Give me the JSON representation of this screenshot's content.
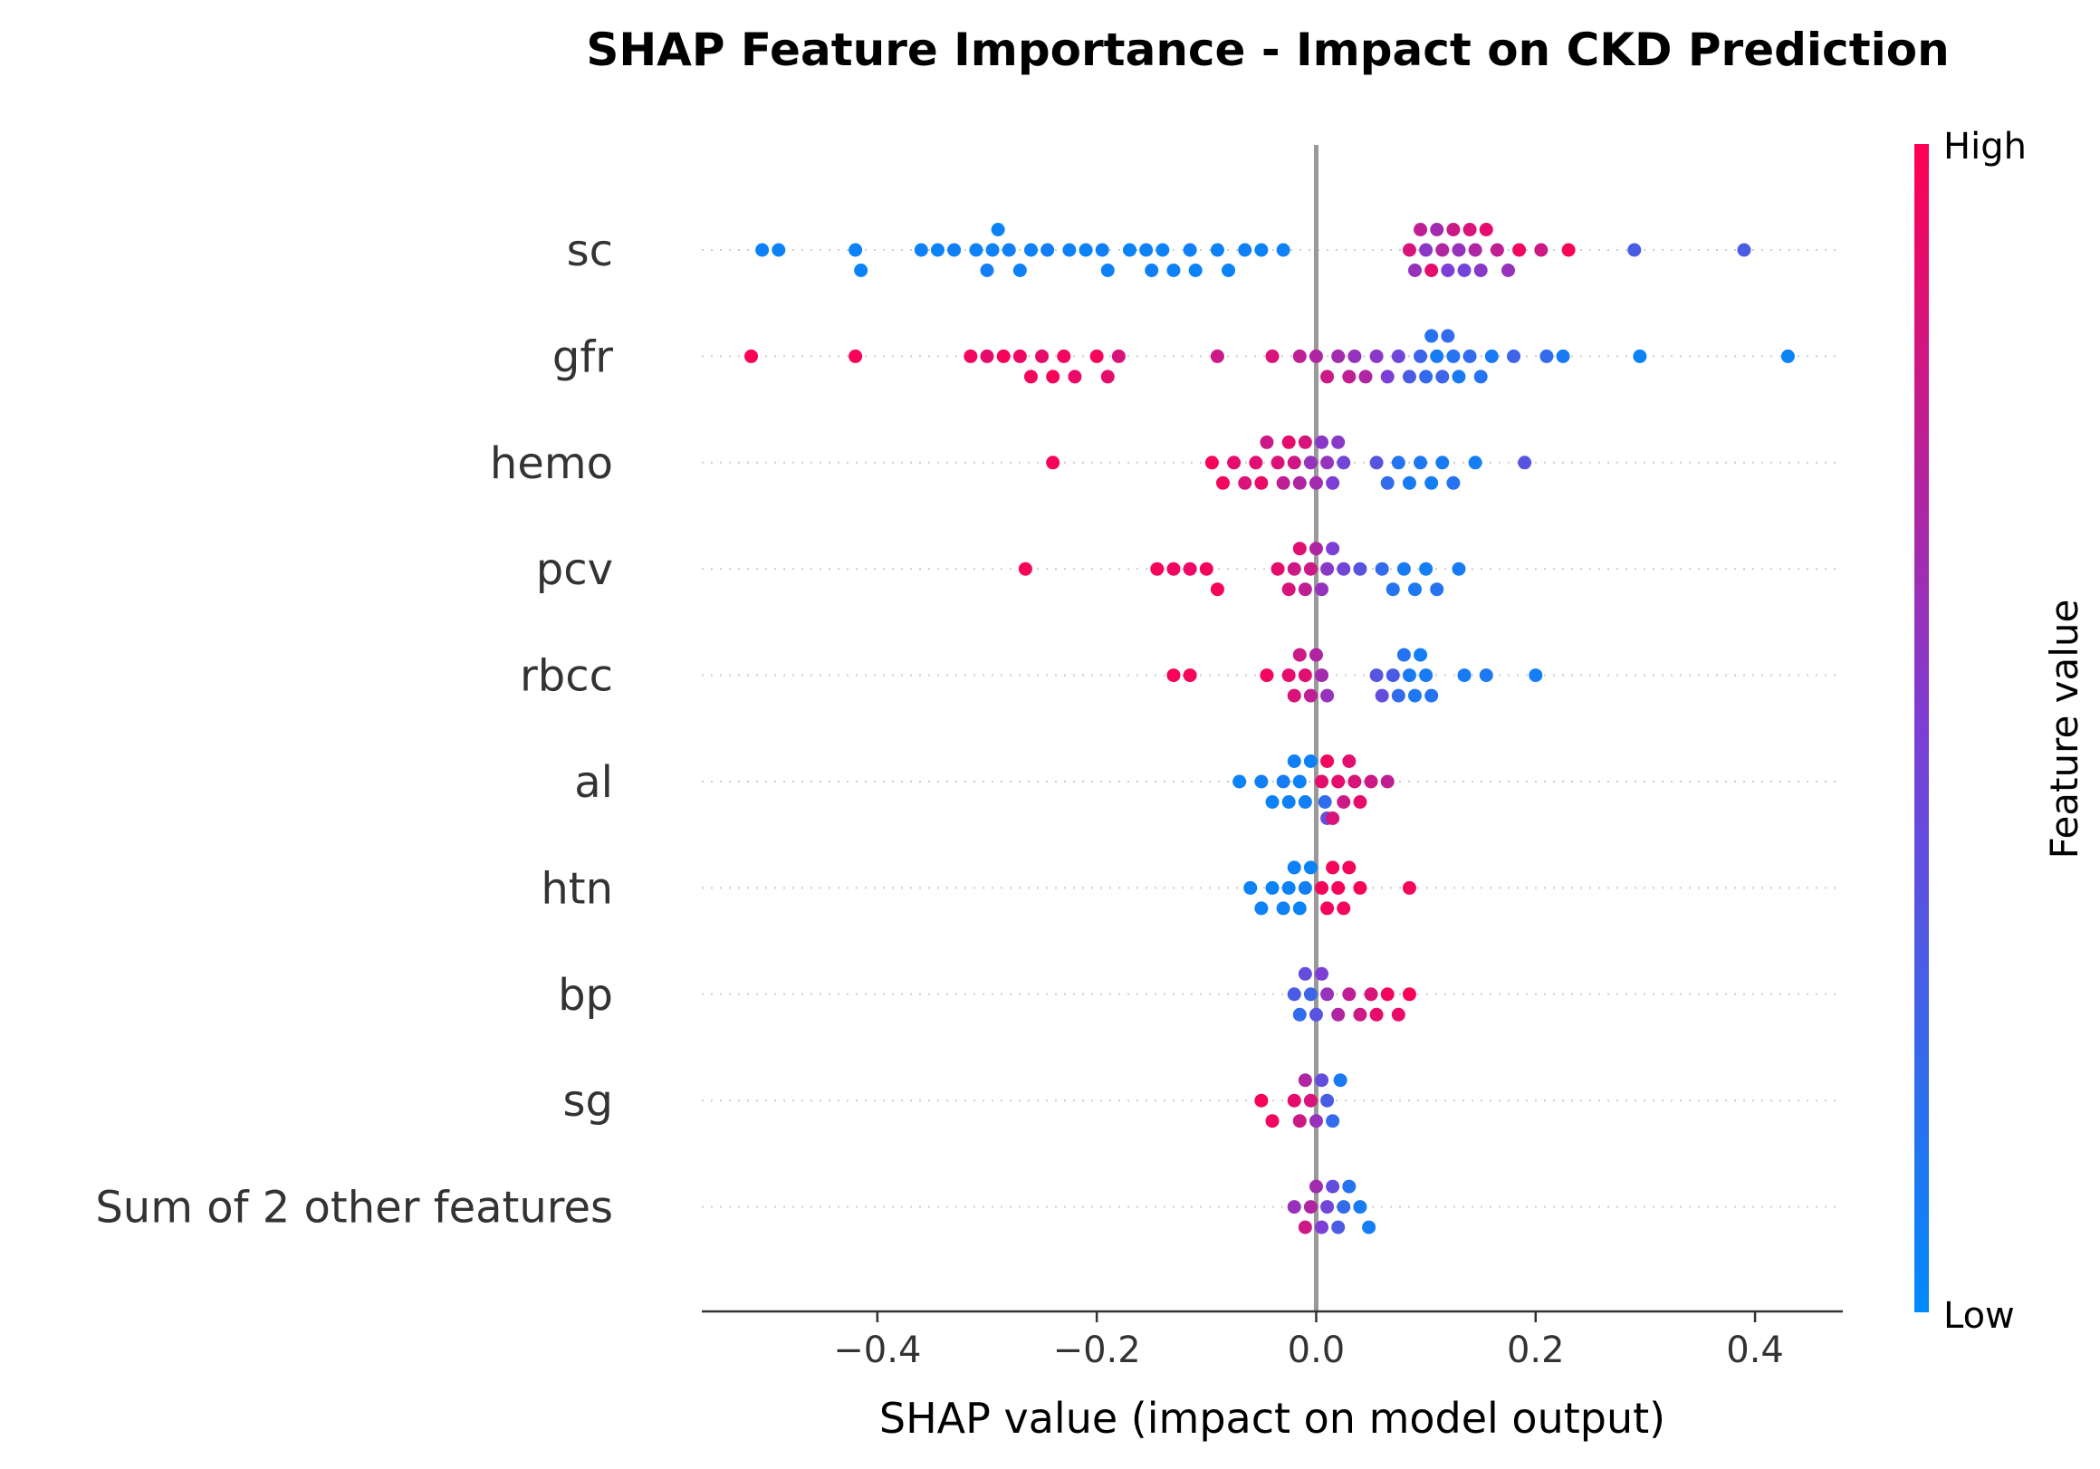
{
  "chart_data": {
    "type": "scatter",
    "title": "SHAP Feature Importance - Impact on CKD Prediction",
    "xlabel": "SHAP value (impact on model output)",
    "xlim": [
      -0.56,
      0.48
    ],
    "xticks": [
      {
        "value": -0.4,
        "label": "−0.4"
      },
      {
        "value": -0.2,
        "label": "−0.2"
      },
      {
        "value": 0.0,
        "label": "0.0"
      },
      {
        "value": 0.2,
        "label": "0.2"
      },
      {
        "value": 0.4,
        "label": "0.4"
      }
    ],
    "zero_line": true,
    "colorbar": {
      "title": "Feature value",
      "high_label": "High",
      "low_label": "Low",
      "low_color": "#008afb",
      "high_color": "#ff0052"
    },
    "features": [
      {
        "name": "sc",
        "points": [
          {
            "x": -0.505,
            "v": 0.05
          },
          {
            "x": -0.49,
            "v": 0.05
          },
          {
            "x": -0.42,
            "v": 0.05
          },
          {
            "x": -0.415,
            "v": 0.05
          },
          {
            "x": -0.36,
            "v": 0.06
          },
          {
            "x": -0.345,
            "v": 0.05
          },
          {
            "x": -0.33,
            "v": 0.07
          },
          {
            "x": -0.31,
            "v": 0.05
          },
          {
            "x": -0.3,
            "v": 0.08
          },
          {
            "x": -0.295,
            "v": 0.06
          },
          {
            "x": -0.29,
            "v": 0.05
          },
          {
            "x": -0.28,
            "v": 0.07
          },
          {
            "x": -0.27,
            "v": 0.06
          },
          {
            "x": -0.26,
            "v": 0.05
          },
          {
            "x": -0.245,
            "v": 0.08
          },
          {
            "x": -0.225,
            "v": 0.06
          },
          {
            "x": -0.21,
            "v": 0.05
          },
          {
            "x": -0.195,
            "v": 0.07
          },
          {
            "x": -0.19,
            "v": 0.06
          },
          {
            "x": -0.17,
            "v": 0.05
          },
          {
            "x": -0.155,
            "v": 0.06
          },
          {
            "x": -0.15,
            "v": 0.08
          },
          {
            "x": -0.14,
            "v": 0.05
          },
          {
            "x": -0.13,
            "v": 0.06
          },
          {
            "x": -0.115,
            "v": 0.07
          },
          {
            "x": -0.11,
            "v": 0.05
          },
          {
            "x": -0.09,
            "v": 0.06
          },
          {
            "x": -0.08,
            "v": 0.05
          },
          {
            "x": -0.065,
            "v": 0.07
          },
          {
            "x": -0.05,
            "v": 0.05
          },
          {
            "x": -0.03,
            "v": 0.06
          },
          {
            "x": 0.085,
            "v": 0.85
          },
          {
            "x": 0.09,
            "v": 0.6
          },
          {
            "x": 0.095,
            "v": 0.75
          },
          {
            "x": 0.1,
            "v": 0.55
          },
          {
            "x": 0.105,
            "v": 0.9
          },
          {
            "x": 0.11,
            "v": 0.65
          },
          {
            "x": 0.115,
            "v": 0.7
          },
          {
            "x": 0.12,
            "v": 0.5
          },
          {
            "x": 0.125,
            "v": 0.8
          },
          {
            "x": 0.13,
            "v": 0.6
          },
          {
            "x": 0.135,
            "v": 0.45
          },
          {
            "x": 0.14,
            "v": 0.85
          },
          {
            "x": 0.145,
            "v": 0.7
          },
          {
            "x": 0.15,
            "v": 0.55
          },
          {
            "x": 0.155,
            "v": 0.9
          },
          {
            "x": 0.165,
            "v": 0.75
          },
          {
            "x": 0.175,
            "v": 0.6
          },
          {
            "x": 0.185,
            "v": 0.95
          },
          {
            "x": 0.205,
            "v": 0.8
          },
          {
            "x": 0.23,
            "v": 0.97
          },
          {
            "x": 0.29,
            "v": 0.3
          },
          {
            "x": 0.39,
            "v": 0.3
          }
        ]
      },
      {
        "name": "gfr",
        "points": [
          {
            "x": -0.515,
            "v": 0.97
          },
          {
            "x": -0.42,
            "v": 0.97
          },
          {
            "x": -0.315,
            "v": 0.95
          },
          {
            "x": -0.3,
            "v": 0.9
          },
          {
            "x": -0.285,
            "v": 0.97
          },
          {
            "x": -0.27,
            "v": 0.93
          },
          {
            "x": -0.26,
            "v": 0.96
          },
          {
            "x": -0.25,
            "v": 0.9
          },
          {
            "x": -0.24,
            "v": 0.97
          },
          {
            "x": -0.23,
            "v": 0.95
          },
          {
            "x": -0.22,
            "v": 0.92
          },
          {
            "x": -0.2,
            "v": 0.96
          },
          {
            "x": -0.19,
            "v": 0.9
          },
          {
            "x": -0.18,
            "v": 0.85
          },
          {
            "x": -0.09,
            "v": 0.8
          },
          {
            "x": -0.04,
            "v": 0.85
          },
          {
            "x": -0.015,
            "v": 0.75
          },
          {
            "x": 0.0,
            "v": 0.7
          },
          {
            "x": 0.01,
            "v": 0.8
          },
          {
            "x": 0.02,
            "v": 0.65
          },
          {
            "x": 0.03,
            "v": 0.75
          },
          {
            "x": 0.035,
            "v": 0.6
          },
          {
            "x": 0.045,
            "v": 0.7
          },
          {
            "x": 0.055,
            "v": 0.55
          },
          {
            "x": 0.065,
            "v": 0.5
          },
          {
            "x": 0.075,
            "v": 0.45
          },
          {
            "x": 0.085,
            "v": 0.3
          },
          {
            "x": 0.095,
            "v": 0.25
          },
          {
            "x": 0.1,
            "v": 0.2
          },
          {
            "x": 0.105,
            "v": 0.15
          },
          {
            "x": 0.11,
            "v": 0.1
          },
          {
            "x": 0.115,
            "v": 0.25
          },
          {
            "x": 0.12,
            "v": 0.2
          },
          {
            "x": 0.125,
            "v": 0.15
          },
          {
            "x": 0.13,
            "v": 0.1
          },
          {
            "x": 0.14,
            "v": 0.2
          },
          {
            "x": 0.15,
            "v": 0.15
          },
          {
            "x": 0.16,
            "v": 0.1
          },
          {
            "x": 0.18,
            "v": 0.25
          },
          {
            "x": 0.21,
            "v": 0.2
          },
          {
            "x": 0.225,
            "v": 0.1
          },
          {
            "x": 0.295,
            "v": 0.05
          },
          {
            "x": 0.43,
            "v": 0.05
          }
        ]
      },
      {
        "name": "hemo",
        "points": [
          {
            "x": -0.24,
            "v": 0.97
          },
          {
            "x": -0.095,
            "v": 0.97
          },
          {
            "x": -0.085,
            "v": 0.95
          },
          {
            "x": -0.075,
            "v": 0.9
          },
          {
            "x": -0.065,
            "v": 0.85
          },
          {
            "x": -0.055,
            "v": 0.88
          },
          {
            "x": -0.05,
            "v": 0.92
          },
          {
            "x": -0.045,
            "v": 0.8
          },
          {
            "x": -0.035,
            "v": 0.86
          },
          {
            "x": -0.03,
            "v": 0.75
          },
          {
            "x": -0.025,
            "v": 0.9
          },
          {
            "x": -0.02,
            "v": 0.82
          },
          {
            "x": -0.015,
            "v": 0.7
          },
          {
            "x": -0.01,
            "v": 0.85
          },
          {
            "x": -0.005,
            "v": 0.6
          },
          {
            "x": 0.0,
            "v": 0.65
          },
          {
            "x": 0.005,
            "v": 0.55
          },
          {
            "x": 0.01,
            "v": 0.6
          },
          {
            "x": 0.015,
            "v": 0.5
          },
          {
            "x": 0.02,
            "v": 0.55
          },
          {
            "x": 0.025,
            "v": 0.45
          },
          {
            "x": 0.055,
            "v": 0.35
          },
          {
            "x": 0.065,
            "v": 0.2
          },
          {
            "x": 0.075,
            "v": 0.15
          },
          {
            "x": 0.085,
            "v": 0.1
          },
          {
            "x": 0.095,
            "v": 0.12
          },
          {
            "x": 0.105,
            "v": 0.08
          },
          {
            "x": 0.115,
            "v": 0.1
          },
          {
            "x": 0.125,
            "v": 0.15
          },
          {
            "x": 0.145,
            "v": 0.08
          },
          {
            "x": 0.19,
            "v": 0.35
          }
        ]
      },
      {
        "name": "pcv",
        "points": [
          {
            "x": -0.265,
            "v": 0.97
          },
          {
            "x": -0.145,
            "v": 0.97
          },
          {
            "x": -0.13,
            "v": 0.95
          },
          {
            "x": -0.115,
            "v": 0.93
          },
          {
            "x": -0.1,
            "v": 0.96
          },
          {
            "x": -0.09,
            "v": 0.97
          },
          {
            "x": -0.035,
            "v": 0.9
          },
          {
            "x": -0.025,
            "v": 0.85
          },
          {
            "x": -0.02,
            "v": 0.8
          },
          {
            "x": -0.015,
            "v": 0.88
          },
          {
            "x": -0.01,
            "v": 0.75
          },
          {
            "x": -0.005,
            "v": 0.8
          },
          {
            "x": 0.0,
            "v": 0.7
          },
          {
            "x": 0.005,
            "v": 0.6
          },
          {
            "x": 0.01,
            "v": 0.55
          },
          {
            "x": 0.015,
            "v": 0.5
          },
          {
            "x": 0.025,
            "v": 0.45
          },
          {
            "x": 0.04,
            "v": 0.35
          },
          {
            "x": 0.06,
            "v": 0.2
          },
          {
            "x": 0.07,
            "v": 0.15
          },
          {
            "x": 0.08,
            "v": 0.1
          },
          {
            "x": 0.09,
            "v": 0.12
          },
          {
            "x": 0.1,
            "v": 0.08
          },
          {
            "x": 0.11,
            "v": 0.15
          },
          {
            "x": 0.13,
            "v": 0.1
          }
        ]
      },
      {
        "name": "rbcc",
        "points": [
          {
            "x": -0.13,
            "v": 0.97
          },
          {
            "x": -0.115,
            "v": 0.96
          },
          {
            "x": -0.045,
            "v": 0.95
          },
          {
            "x": -0.025,
            "v": 0.9
          },
          {
            "x": -0.02,
            "v": 0.85
          },
          {
            "x": -0.015,
            "v": 0.8
          },
          {
            "x": -0.01,
            "v": 0.88
          },
          {
            "x": -0.005,
            "v": 0.75
          },
          {
            "x": 0.0,
            "v": 0.7
          },
          {
            "x": 0.005,
            "v": 0.65
          },
          {
            "x": 0.01,
            "v": 0.6
          },
          {
            "x": 0.055,
            "v": 0.35
          },
          {
            "x": 0.06,
            "v": 0.4
          },
          {
            "x": 0.07,
            "v": 0.3
          },
          {
            "x": 0.075,
            "v": 0.2
          },
          {
            "x": 0.08,
            "v": 0.15
          },
          {
            "x": 0.085,
            "v": 0.1
          },
          {
            "x": 0.09,
            "v": 0.12
          },
          {
            "x": 0.095,
            "v": 0.08
          },
          {
            "x": 0.1,
            "v": 0.1
          },
          {
            "x": 0.105,
            "v": 0.15
          },
          {
            "x": 0.135,
            "v": 0.1
          },
          {
            "x": 0.155,
            "v": 0.12
          },
          {
            "x": 0.2,
            "v": 0.08
          }
        ]
      },
      {
        "name": "al",
        "points": [
          {
            "x": -0.07,
            "v": 0.05
          },
          {
            "x": -0.05,
            "v": 0.08
          },
          {
            "x": -0.04,
            "v": 0.05
          },
          {
            "x": -0.03,
            "v": 0.1
          },
          {
            "x": -0.025,
            "v": 0.06
          },
          {
            "x": -0.02,
            "v": 0.08
          },
          {
            "x": -0.015,
            "v": 0.05
          },
          {
            "x": -0.01,
            "v": 0.07
          },
          {
            "x": -0.005,
            "v": 0.06
          },
          {
            "x": 0.005,
            "v": 0.9
          },
          {
            "x": 0.01,
            "v": 0.95
          },
          {
            "x": 0.015,
            "v": 0.85
          },
          {
            "x": 0.02,
            "v": 0.9
          },
          {
            "x": 0.025,
            "v": 0.8
          },
          {
            "x": 0.03,
            "v": 0.88
          },
          {
            "x": 0.035,
            "v": 0.85
          },
          {
            "x": 0.04,
            "v": 0.9
          },
          {
            "x": 0.05,
            "v": 0.8
          },
          {
            "x": 0.065,
            "v": 0.75
          },
          {
            "x": 0.01,
            "v": 0.4
          },
          {
            "x": 0.008,
            "v": 0.2
          }
        ]
      },
      {
        "name": "htn",
        "points": [
          {
            "x": -0.06,
            "v": 0.05
          },
          {
            "x": -0.05,
            "v": 0.06
          },
          {
            "x": -0.04,
            "v": 0.05
          },
          {
            "x": -0.03,
            "v": 0.07
          },
          {
            "x": -0.025,
            "v": 0.05
          },
          {
            "x": -0.02,
            "v": 0.06
          },
          {
            "x": -0.015,
            "v": 0.05
          },
          {
            "x": -0.01,
            "v": 0.08
          },
          {
            "x": -0.005,
            "v": 0.05
          },
          {
            "x": 0.005,
            "v": 0.97
          },
          {
            "x": 0.01,
            "v": 0.95
          },
          {
            "x": 0.015,
            "v": 0.96
          },
          {
            "x": 0.02,
            "v": 0.97
          },
          {
            "x": 0.025,
            "v": 0.95
          },
          {
            "x": 0.03,
            "v": 0.96
          },
          {
            "x": 0.04,
            "v": 0.97
          },
          {
            "x": 0.085,
            "v": 0.96
          }
        ]
      },
      {
        "name": "bp",
        "points": [
          {
            "x": -0.02,
            "v": 0.3
          },
          {
            "x": -0.015,
            "v": 0.2
          },
          {
            "x": -0.01,
            "v": 0.4
          },
          {
            "x": -0.005,
            "v": 0.25
          },
          {
            "x": 0.0,
            "v": 0.35
          },
          {
            "x": 0.005,
            "v": 0.5
          },
          {
            "x": 0.01,
            "v": 0.6
          },
          {
            "x": 0.02,
            "v": 0.7
          },
          {
            "x": 0.03,
            "v": 0.75
          },
          {
            "x": 0.04,
            "v": 0.8
          },
          {
            "x": 0.05,
            "v": 0.85
          },
          {
            "x": 0.055,
            "v": 0.9
          },
          {
            "x": 0.065,
            "v": 0.95
          },
          {
            "x": 0.075,
            "v": 0.92
          },
          {
            "x": 0.085,
            "v": 0.97
          }
        ]
      },
      {
        "name": "sg",
        "points": [
          {
            "x": -0.05,
            "v": 0.97
          },
          {
            "x": -0.04,
            "v": 0.95
          },
          {
            "x": -0.02,
            "v": 0.9
          },
          {
            "x": -0.015,
            "v": 0.8
          },
          {
            "x": -0.01,
            "v": 0.7
          },
          {
            "x": -0.005,
            "v": 0.85
          },
          {
            "x": 0.0,
            "v": 0.6
          },
          {
            "x": 0.005,
            "v": 0.4
          },
          {
            "x": 0.01,
            "v": 0.3
          },
          {
            "x": 0.015,
            "v": 0.2
          },
          {
            "x": 0.022,
            "v": 0.1
          }
        ]
      },
      {
        "name": "Sum of 2 other features",
        "points": [
          {
            "x": -0.02,
            "v": 0.6
          },
          {
            "x": -0.01,
            "v": 0.8
          },
          {
            "x": -0.005,
            "v": 0.7
          },
          {
            "x": 0.0,
            "v": 0.65
          },
          {
            "x": 0.005,
            "v": 0.5
          },
          {
            "x": 0.01,
            "v": 0.45
          },
          {
            "x": 0.015,
            "v": 0.4
          },
          {
            "x": 0.02,
            "v": 0.3
          },
          {
            "x": 0.025,
            "v": 0.2
          },
          {
            "x": 0.03,
            "v": 0.15
          },
          {
            "x": 0.04,
            "v": 0.1
          },
          {
            "x": 0.048,
            "v": 0.08
          }
        ]
      }
    ]
  }
}
